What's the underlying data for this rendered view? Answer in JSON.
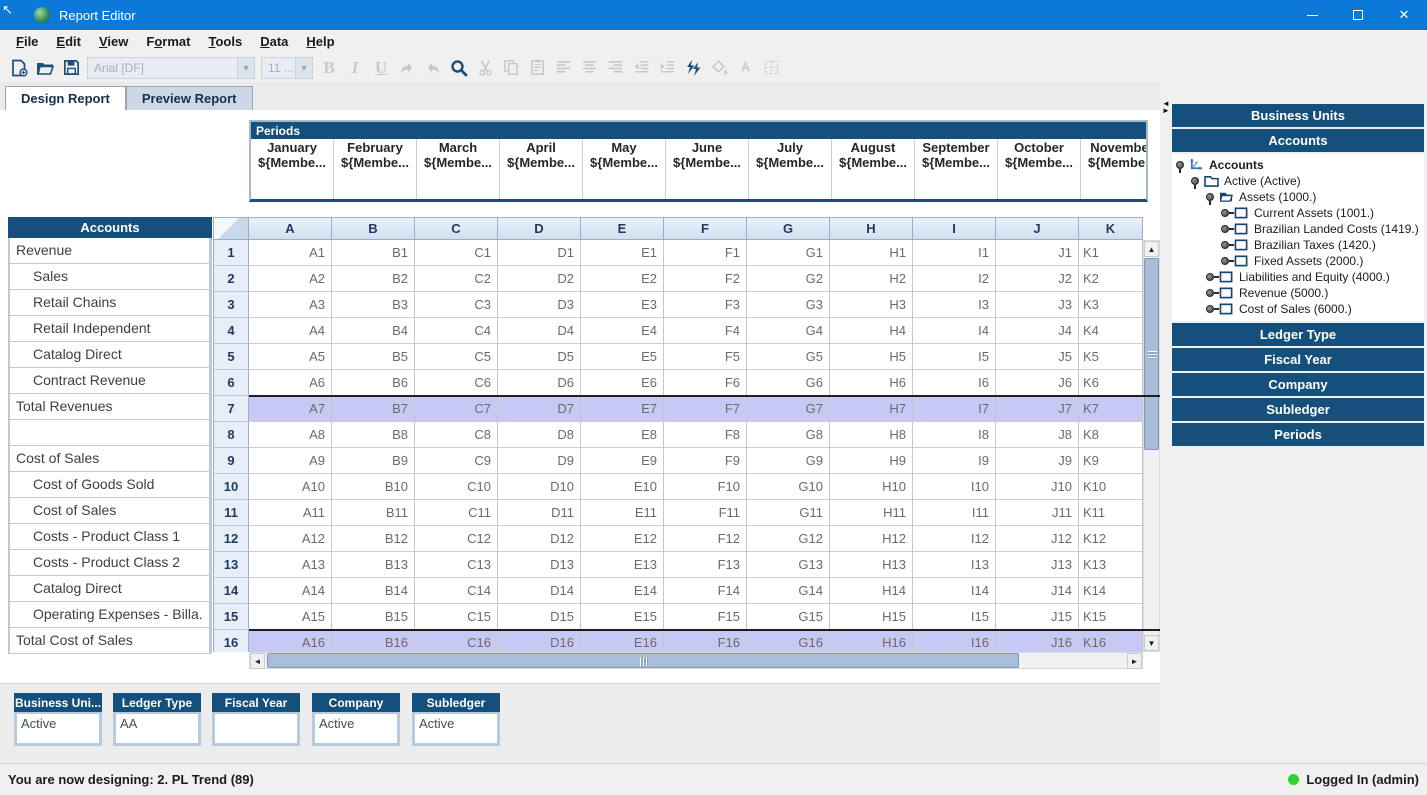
{
  "window": {
    "title": "Report Editor"
  },
  "menu": {
    "items": [
      {
        "label": "File",
        "underline": 0
      },
      {
        "label": "Edit",
        "underline": 0
      },
      {
        "label": "View",
        "underline": 0
      },
      {
        "label": "Format",
        "underline": 1
      },
      {
        "label": "Tools",
        "underline": 0
      },
      {
        "label": "Data",
        "underline": 0
      },
      {
        "label": "Help",
        "underline": 0
      }
    ]
  },
  "toolbar": {
    "font_value": "Arial [DF]",
    "size_value": "11 ...",
    "bold_label": "B",
    "italic_label": "I",
    "underline_label": "U"
  },
  "tabs": [
    {
      "label": "Design Report",
      "active": true
    },
    {
      "label": "Preview Report",
      "active": false
    }
  ],
  "periods_panel": {
    "title": "Periods",
    "months": [
      "January",
      "February",
      "March",
      "April",
      "May",
      "June",
      "July",
      "August",
      "September",
      "October",
      "November"
    ],
    "member_placeholder": "${Membe..."
  },
  "accounts_panel": {
    "title": "Accounts",
    "rows": [
      {
        "label": "Revenue",
        "indent": 0
      },
      {
        "label": "Sales",
        "indent": 1
      },
      {
        "label": "Retail Chains",
        "indent": 1
      },
      {
        "label": "Retail Independent",
        "indent": 1
      },
      {
        "label": "Catalog Direct",
        "indent": 1
      },
      {
        "label": "Contract Revenue",
        "indent": 1
      },
      {
        "label": "Total Revenues",
        "indent": 0
      },
      {
        "label": "",
        "indent": 0
      },
      {
        "label": "Cost of Sales",
        "indent": 0
      },
      {
        "label": "Cost of Goods Sold",
        "indent": 1
      },
      {
        "label": "Cost of Sales",
        "indent": 1
      },
      {
        "label": "Costs - Product Class 1",
        "indent": 1
      },
      {
        "label": "Costs - Product Class 2",
        "indent": 1
      },
      {
        "label": "Catalog Direct",
        "indent": 1
      },
      {
        "label": "Operating Expenses - Billa.",
        "indent": 1
      },
      {
        "label": "Total Cost of Sales",
        "indent": 0
      }
    ]
  },
  "grid": {
    "columns": [
      "A",
      "B",
      "C",
      "D",
      "E",
      "F",
      "G",
      "H",
      "I",
      "J",
      "K"
    ],
    "row_count": 16,
    "highlighted_rows": [
      7,
      16
    ],
    "cell_pattern": "{col}{row}"
  },
  "sidebar": {
    "sections": [
      "Business Units",
      "Accounts",
      "Ledger Type",
      "Fiscal Year",
      "Company",
      "Subledger",
      "Periods"
    ],
    "tree": [
      {
        "label": "Accounts",
        "depth": 0,
        "icon": "axis",
        "state": "expanded",
        "bold": true
      },
      {
        "label": "Active (Active)",
        "depth": 1,
        "icon": "folder-closed",
        "state": "expanded",
        "bold": false
      },
      {
        "label": "Assets (1000.)",
        "depth": 2,
        "icon": "folder-open",
        "state": "expanded",
        "bold": false
      },
      {
        "label": "Current Assets (1001.)",
        "depth": 3,
        "icon": "leaf",
        "state": "collapsed",
        "bold": false
      },
      {
        "label": "Brazilian Landed Costs (1419.)",
        "depth": 3,
        "icon": "leaf",
        "state": "collapsed",
        "bold": false
      },
      {
        "label": "Brazilian Taxes (1420.)",
        "depth": 3,
        "icon": "leaf",
        "state": "collapsed",
        "bold": false
      },
      {
        "label": "Fixed Assets (2000.)",
        "depth": 3,
        "icon": "leaf",
        "state": "collapsed",
        "bold": false
      },
      {
        "label": "Liabilities and Equity (4000.)",
        "depth": 2,
        "icon": "leaf",
        "state": "collapsed",
        "bold": false
      },
      {
        "label": "Revenue (5000.)",
        "depth": 2,
        "icon": "leaf",
        "state": "collapsed",
        "bold": false
      },
      {
        "label": "Cost of Sales (6000.)",
        "depth": 2,
        "icon": "leaf",
        "state": "collapsed",
        "bold": false
      }
    ]
  },
  "bottom_widgets": [
    {
      "title": "Business Uni...",
      "value": "Active"
    },
    {
      "title": "Ledger Type",
      "value": "AA"
    },
    {
      "title": "Fiscal Year",
      "value": ""
    },
    {
      "title": "Company",
      "value": "Active"
    },
    {
      "title": "Subledger",
      "value": "Active"
    }
  ],
  "status": {
    "left": "You are now designing: 2. PL Trend (89)",
    "right": "Logged In (admin)",
    "indicator_color": "#2fd32f"
  },
  "colors": {
    "titlebar": "#0b79d7",
    "panel_header": "#15507c",
    "row_highlight": "#c8c8f4",
    "grid_header_text": "#1e3a5f"
  }
}
